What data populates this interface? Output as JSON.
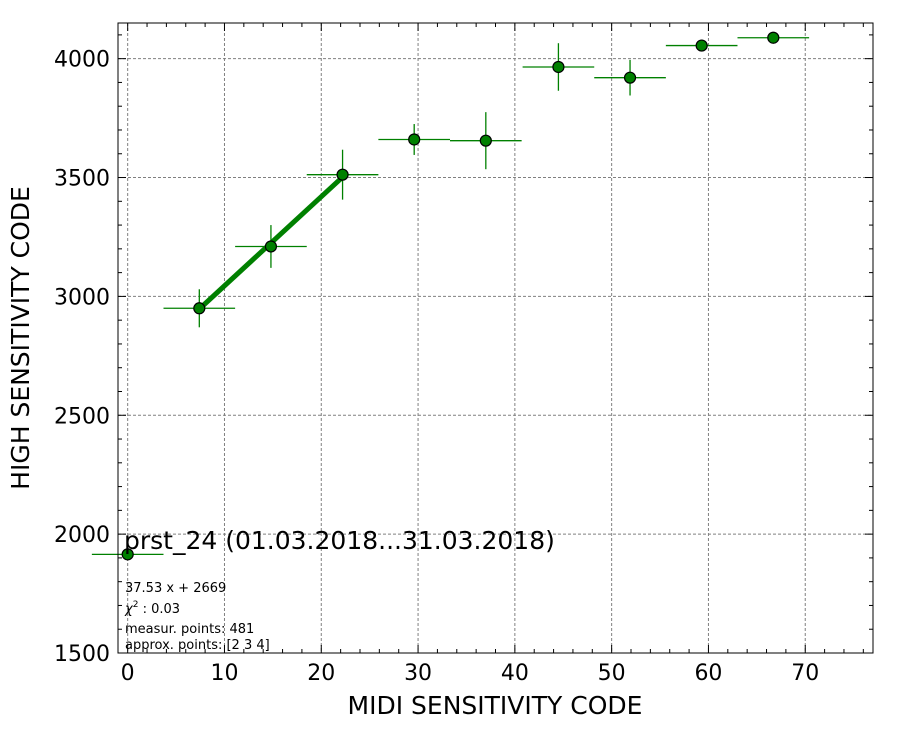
{
  "chart_data": {
    "type": "scatter",
    "xlabel": "MIDI SENSITIVITY CODE",
    "ylabel": "HIGH SENSITIVITY CODE",
    "xlim": [
      -1,
      77
    ],
    "ylim": [
      1500,
      4150
    ],
    "xticks": [
      0,
      10,
      20,
      30,
      40,
      50,
      60,
      70
    ],
    "yticks": [
      1500,
      2000,
      2500,
      3000,
      3500,
      4000
    ],
    "grid": true,
    "colors": {
      "points": "#008000",
      "fit": "#008000",
      "edge": "#000000",
      "grid": "#808080"
    },
    "points": [
      {
        "x": 0.0,
        "y": 1915,
        "xerr": 3.7,
        "yerr": 0
      },
      {
        "x": 7.4,
        "y": 2950,
        "xerr": 3.7,
        "yerr": 80
      },
      {
        "x": 14.8,
        "y": 3210,
        "xerr": 3.7,
        "yerr": 90
      },
      {
        "x": 22.2,
        "y": 3512,
        "xerr": 3.7,
        "yerr": 105
      },
      {
        "x": 29.6,
        "y": 3660,
        "xerr": 3.7,
        "yerr": 65
      },
      {
        "x": 37.0,
        "y": 3655,
        "xerr": 3.7,
        "yerr": 120
      },
      {
        "x": 44.5,
        "y": 3965,
        "xerr": 3.7,
        "yerr": 100
      },
      {
        "x": 51.9,
        "y": 3920,
        "xerr": 3.7,
        "yerr": 75
      },
      {
        "x": 59.3,
        "y": 4055,
        "xerr": 3.7,
        "yerr": 0
      },
      {
        "x": 66.7,
        "y": 4088,
        "xerr": 3.7,
        "yerr": 0
      }
    ],
    "fit_line": {
      "x": [
        7.4,
        22.2
      ],
      "y": [
        2947,
        3502
      ]
    },
    "annotations": {
      "title": "prst_24 (01.03.2018...31.03.2018)",
      "equation": "37.53 x + 2669",
      "chi2_label": "χ",
      "chi2_sup": "2",
      "chi2_value": " : 0.03",
      "measur_points": "measur. points: 481",
      "approx_points": "approx. points: [2 3 4]"
    }
  }
}
